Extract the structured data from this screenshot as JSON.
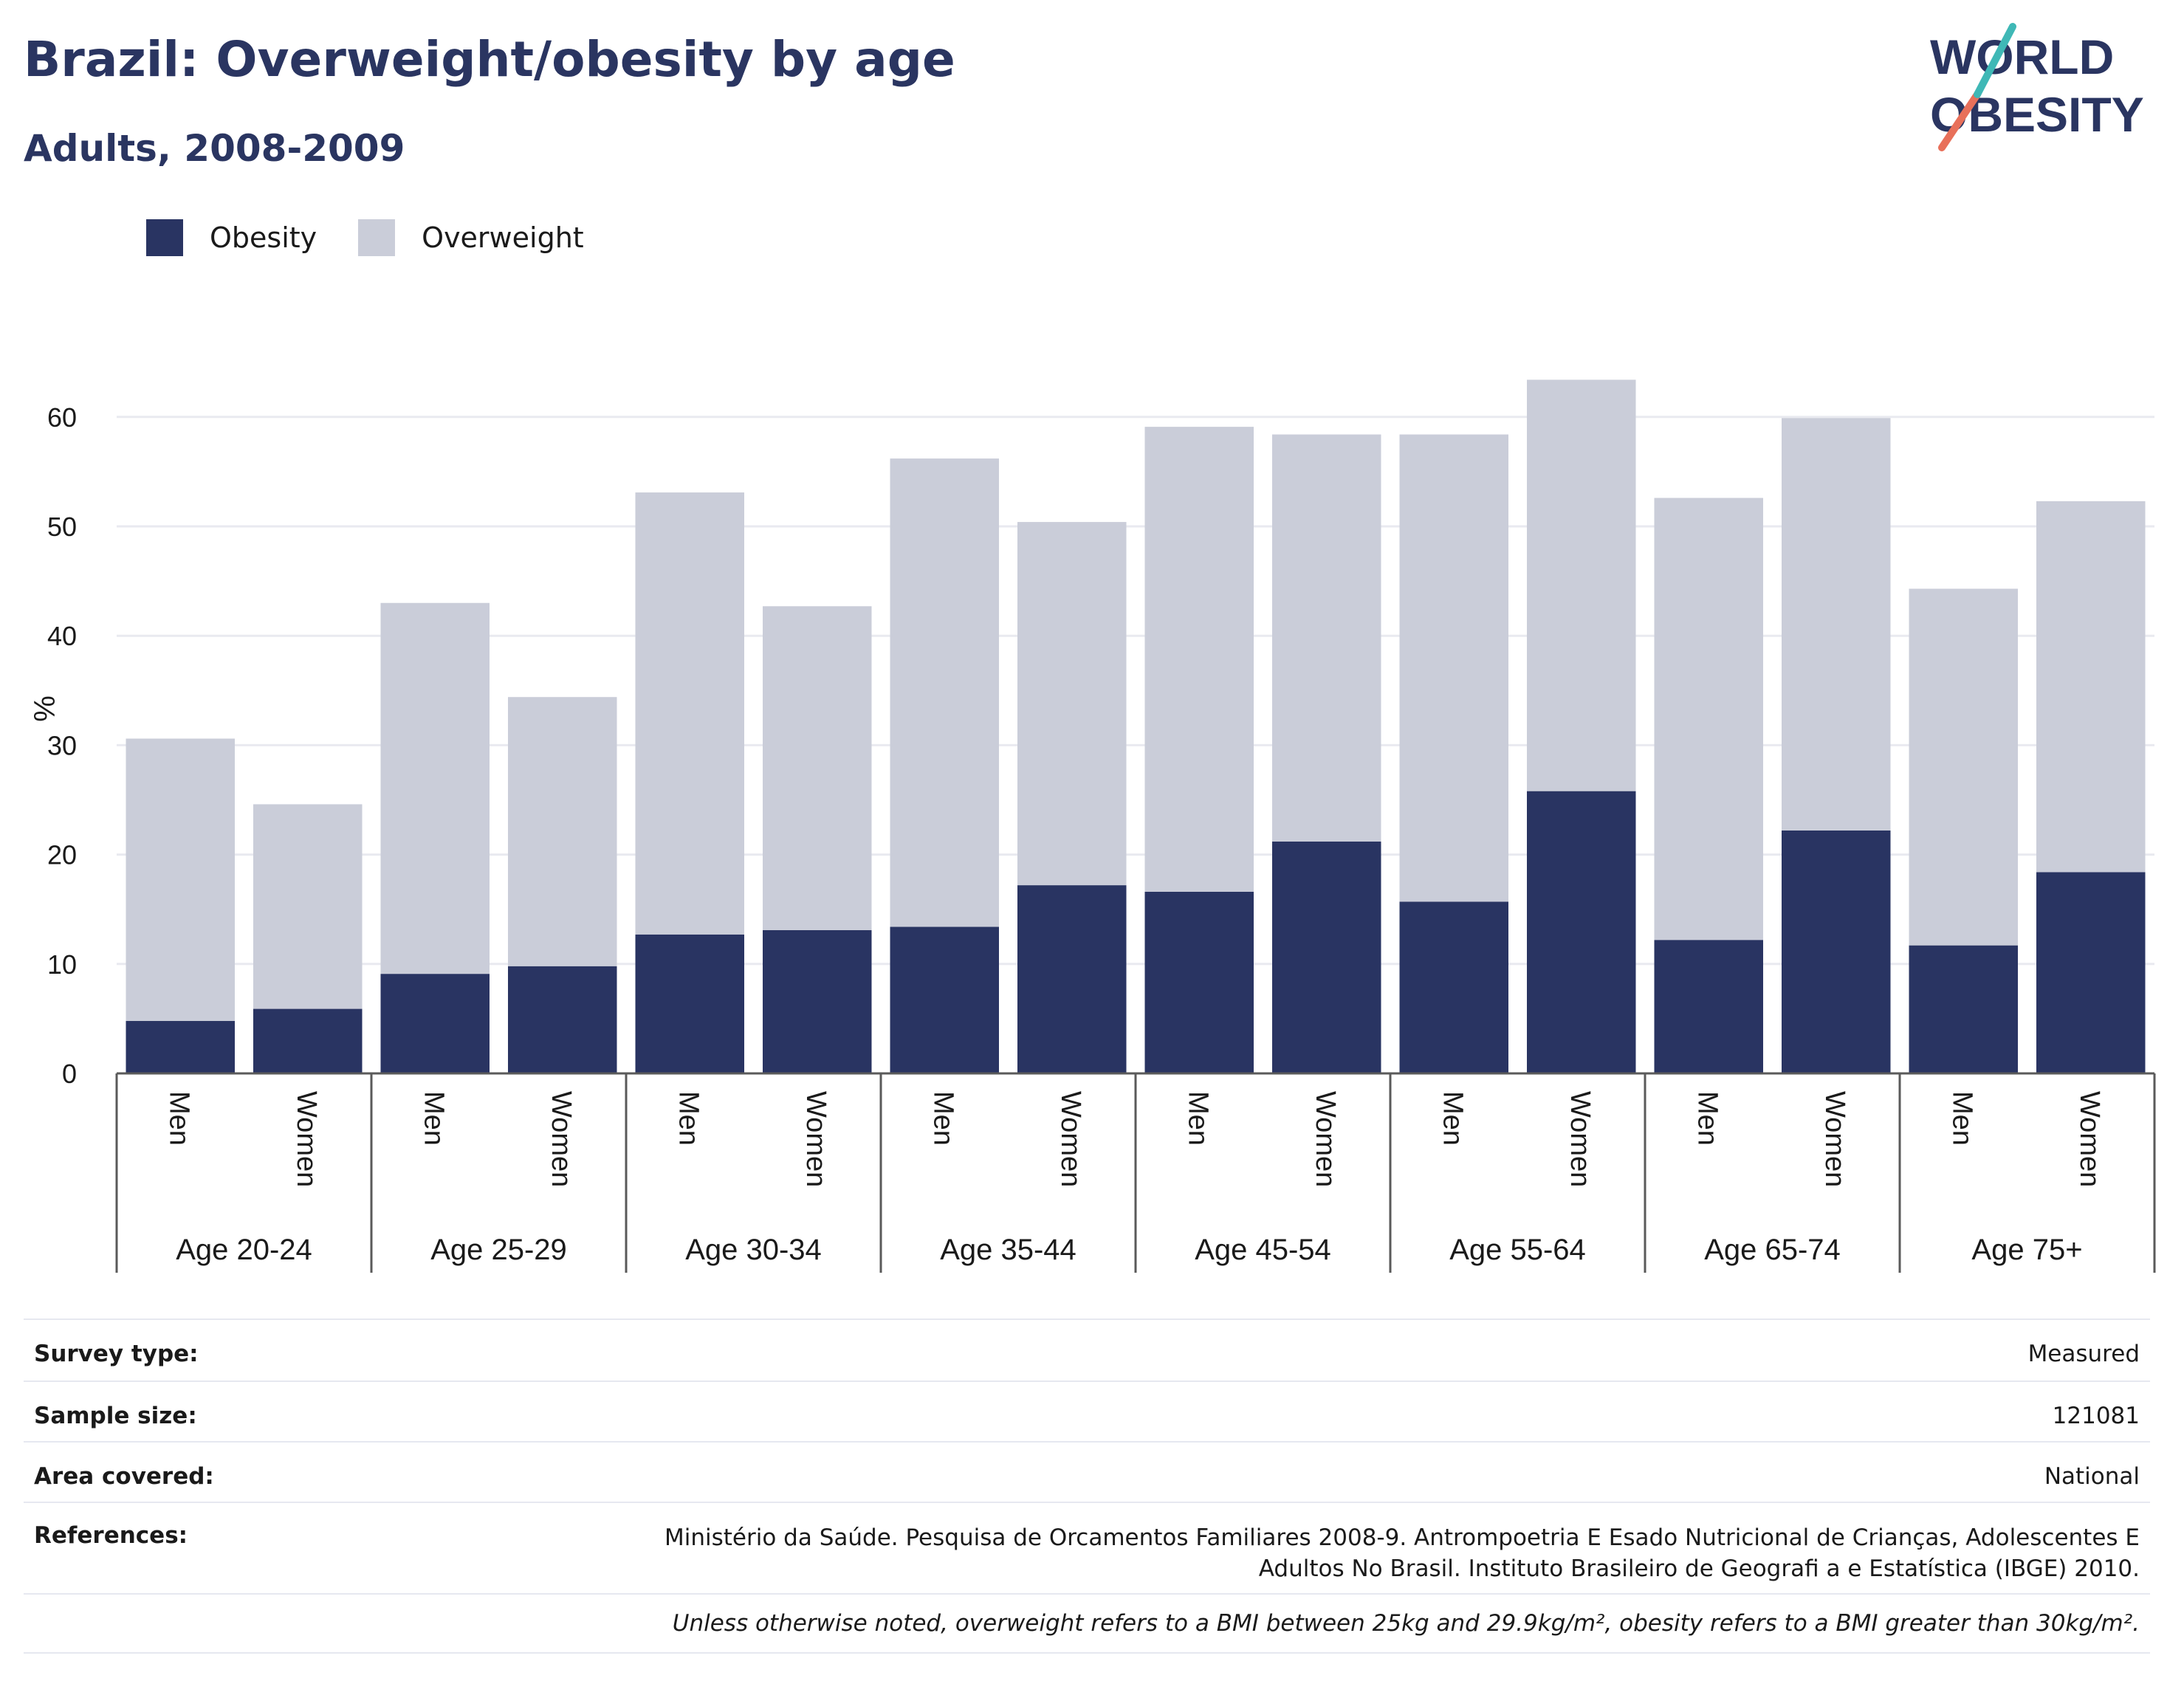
{
  "header": {
    "title": "Brazil: Overweight/obesity by age",
    "subtitle": "Adults, 2008-2009"
  },
  "logo": {
    "line1": "WORLD",
    "line2": "OBESITY"
  },
  "legend": [
    {
      "label": "Obesity",
      "color": "#293462"
    },
    {
      "label": "Overweight",
      "color": "#cacdd9"
    }
  ],
  "chart_data": {
    "type": "bar",
    "stacked": true,
    "ylabel": "%",
    "ylim": [
      0,
      66
    ],
    "yticks": [
      0,
      10,
      20,
      30,
      40,
      50,
      60
    ],
    "grid": true,
    "legend_position": "top-left",
    "groups": [
      "Age 20-24",
      "Age 25-29",
      "Age 30-34",
      "Age 35-44",
      "Age 45-54",
      "Age 55-64",
      "Age 65-74",
      "Age 75+"
    ],
    "subcategories": [
      "Men",
      "Women"
    ],
    "series": [
      {
        "name": "Obesity",
        "color": "#293462",
        "values": [
          4.8,
          5.9,
          9.1,
          9.8,
          12.7,
          13.1,
          13.4,
          17.2,
          16.6,
          21.2,
          15.7,
          25.8,
          12.2,
          22.2,
          11.7,
          18.4
        ]
      },
      {
        "name": "Overweight",
        "color": "#cacdd9",
        "values": [
          25.8,
          18.7,
          33.9,
          24.6,
          40.4,
          29.6,
          42.8,
          33.2,
          42.5,
          37.2,
          42.7,
          37.6,
          40.4,
          37.7,
          32.6,
          33.9
        ]
      }
    ]
  },
  "info": {
    "survey_type": {
      "label": "Survey type:",
      "value": "Measured"
    },
    "sample_size": {
      "label": "Sample size:",
      "value": "121081"
    },
    "area_covered": {
      "label": "Area covered:",
      "value": "National"
    },
    "references": {
      "label": "References:",
      "value": "Ministério da Saúde. Pesquisa de Orcamentos Familiares 2008-9. Antrompoetria E Esado Nutricional de Crianças, Adolescentes E Adultos No Brasil. Instituto Brasileiro de Geografi a e Estatística (IBGE) 2010."
    },
    "note": "Unless otherwise noted, overweight refers to a BMI between 25kg and 29.9kg/m², obesity refers to a BMI greater than 30kg/m²."
  }
}
